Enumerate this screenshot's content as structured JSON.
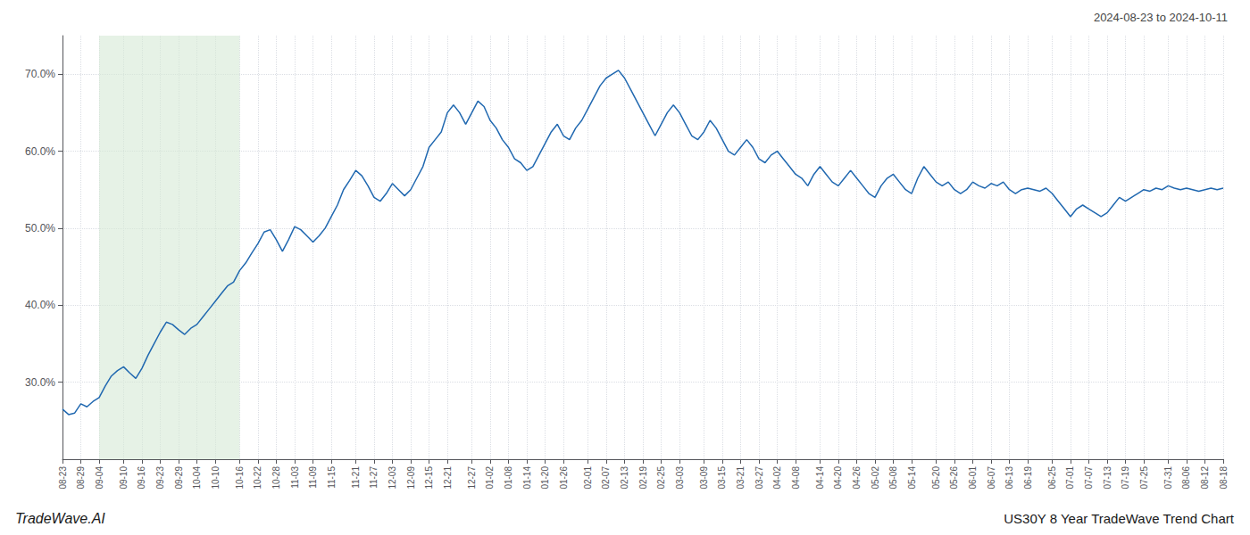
{
  "chart_data": {
    "type": "line",
    "title": "2024-08-23 to 2024-10-11",
    "annotations": [
      "TradeWave.AI",
      "US30Y 8 Year TradeWave Trend Chart"
    ],
    "color": "#2068b0",
    "grid": true,
    "shade": {
      "start": "09-04",
      "end": "10-16",
      "color": "#d6ead6"
    },
    "ylim": [
      20,
      75
    ],
    "yticks": [
      {
        "value": 30.0,
        "label": "30.0%"
      },
      {
        "value": 40.0,
        "label": "40.0%"
      },
      {
        "value": 50.0,
        "label": "50.0%"
      },
      {
        "value": 60.0,
        "label": "60.0%"
      },
      {
        "value": 70.0,
        "label": "70.0%"
      }
    ],
    "categories": [
      "08-23",
      null,
      null,
      "08-29",
      null,
      null,
      "09-04",
      null,
      null,
      null,
      "09-10",
      null,
      null,
      "09-16",
      null,
      null,
      "09-23",
      null,
      null,
      "09-29",
      null,
      null,
      "10-04",
      null,
      null,
      "10-10",
      null,
      null,
      null,
      "10-16",
      null,
      null,
      "10-22",
      null,
      null,
      "10-28",
      null,
      null,
      "11-03",
      null,
      null,
      "11-09",
      null,
      null,
      "11-15",
      null,
      null,
      null,
      "11-21",
      null,
      null,
      "11-27",
      null,
      null,
      "12-03",
      null,
      null,
      "12-09",
      null,
      null,
      "12-15",
      null,
      null,
      "12-21",
      null,
      null,
      null,
      "12-27",
      null,
      null,
      "01-02",
      null,
      null,
      "01-08",
      null,
      null,
      "01-14",
      null,
      null,
      "01-20",
      null,
      null,
      "01-26",
      null,
      null,
      null,
      "02-01",
      null,
      null,
      "02-07",
      null,
      null,
      "02-13",
      null,
      null,
      "02-19",
      null,
      null,
      "02-25",
      null,
      null,
      "03-03",
      null,
      null,
      null,
      "03-09",
      null,
      null,
      "03-15",
      null,
      null,
      "03-21",
      null,
      null,
      "03-27",
      null,
      null,
      "04-02",
      null,
      null,
      "04-08",
      null,
      null,
      null,
      "04-14",
      null,
      null,
      "04-20",
      null,
      null,
      "04-26",
      null,
      null,
      "05-02",
      null,
      null,
      "05-08",
      null,
      null,
      "05-14",
      null,
      null,
      null,
      "05-20",
      null,
      null,
      "05-26",
      null,
      null,
      "06-01",
      null,
      null,
      "06-07",
      null,
      null,
      "06-13",
      null,
      null,
      "06-19",
      null,
      null,
      null,
      "06-25",
      null,
      null,
      "07-01",
      null,
      null,
      "07-07",
      null,
      null,
      "07-13",
      null,
      null,
      "07-19",
      null,
      null,
      "07-25",
      null,
      null,
      null,
      "07-31",
      null,
      null,
      "08-06",
      null,
      null,
      "08-12",
      null,
      null,
      "08-18"
    ],
    "values": [
      26.5,
      25.8,
      26.0,
      27.2,
      26.8,
      27.5,
      28.0,
      29.5,
      30.8,
      31.5,
      32.0,
      31.2,
      30.5,
      31.8,
      33.5,
      35.0,
      36.5,
      37.8,
      37.5,
      36.8,
      36.2,
      37.0,
      37.5,
      38.5,
      39.5,
      40.5,
      41.5,
      42.5,
      43.0,
      44.5,
      45.5,
      46.8,
      48.0,
      49.5,
      49.8,
      48.5,
      47.0,
      48.5,
      50.2,
      49.8,
      49.0,
      48.2,
      49.0,
      50.0,
      51.5,
      53.0,
      55.0,
      56.2,
      57.5,
      56.8,
      55.5,
      54.0,
      53.5,
      54.5,
      55.8,
      55.0,
      54.2,
      55.0,
      56.5,
      58.0,
      60.5,
      61.5,
      62.5,
      65.0,
      66.0,
      65.0,
      63.5,
      65.0,
      66.5,
      65.8,
      64.0,
      63.0,
      61.5,
      60.5,
      59.0,
      58.5,
      57.5,
      58.0,
      59.5,
      61.0,
      62.5,
      63.5,
      62.0,
      61.5,
      63.0,
      64.0,
      65.5,
      67.0,
      68.5,
      69.5,
      70.0,
      70.5,
      69.5,
      68.0,
      66.5,
      65.0,
      63.5,
      62.0,
      63.5,
      65.0,
      66.0,
      65.0,
      63.5,
      62.0,
      61.5,
      62.5,
      64.0,
      63.0,
      61.5,
      60.0,
      59.5,
      60.5,
      61.5,
      60.5,
      59.0,
      58.5,
      59.5,
      60.0,
      59.0,
      58.0,
      57.0,
      56.5,
      55.5,
      57.0,
      58.0,
      57.0,
      56.0,
      55.5,
      56.5,
      57.5,
      56.5,
      55.5,
      54.5,
      54.0,
      55.5,
      56.5,
      57.0,
      56.0,
      55.0,
      54.5,
      56.5,
      58.0,
      57.0,
      56.0,
      55.5,
      56.0,
      55.0,
      54.5,
      55.0,
      56.0,
      55.5,
      55.2,
      55.8,
      55.5,
      56.0,
      55.0,
      54.5,
      55.0,
      55.2,
      55.0,
      54.8,
      55.2,
      54.5,
      53.5,
      52.5,
      51.5,
      52.5,
      53.0,
      52.5,
      52.0,
      51.5,
      52.0,
      53.0,
      54.0,
      53.5,
      54.0,
      54.5,
      55.0,
      54.8,
      55.2,
      55.0,
      55.5,
      55.2,
      55.0,
      55.2,
      55.0,
      54.8,
      55.0,
      55.2,
      55.0,
      55.2
    ]
  }
}
